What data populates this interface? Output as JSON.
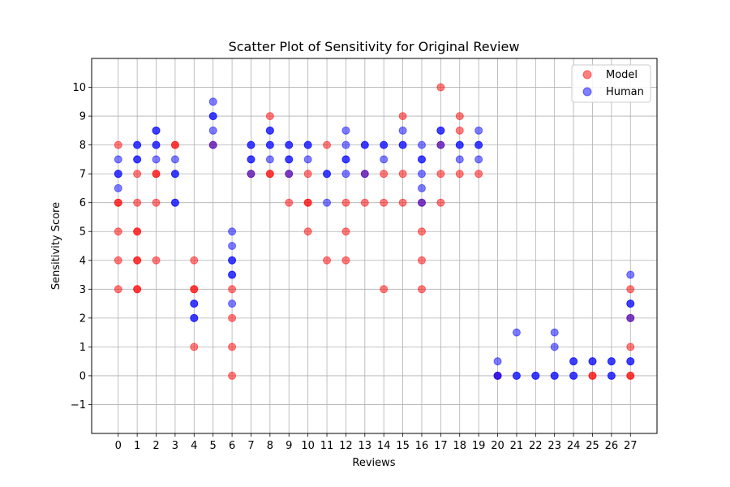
{
  "chart_data": {
    "type": "scatter",
    "title": "Scatter Plot of Sensitivity for Original Review",
    "xlabel": "Reviews",
    "ylabel": "Sensitivity Score",
    "xlim": [
      -1.4,
      28.4
    ],
    "ylim": [
      -2,
      11
    ],
    "xticks": [
      0,
      1,
      2,
      3,
      4,
      5,
      6,
      7,
      8,
      9,
      10,
      11,
      12,
      13,
      14,
      15,
      16,
      17,
      18,
      19,
      20,
      21,
      22,
      23,
      24,
      25,
      26,
      27
    ],
    "yticks": [
      -1,
      0,
      1,
      2,
      3,
      4,
      5,
      6,
      7,
      8,
      9,
      10
    ],
    "grid": true,
    "legend": "top-right",
    "series": [
      {
        "name": "Model",
        "color": "#ff0000",
        "points": [
          [
            0,
            8
          ],
          [
            0,
            6
          ],
          [
            0,
            6
          ],
          [
            0,
            5
          ],
          [
            0,
            4
          ],
          [
            0,
            3
          ],
          [
            1,
            7
          ],
          [
            1,
            6
          ],
          [
            1,
            5
          ],
          [
            1,
            5
          ],
          [
            1,
            4
          ],
          [
            1,
            4
          ],
          [
            1,
            3
          ],
          [
            1,
            3
          ],
          [
            2,
            7
          ],
          [
            2,
            7
          ],
          [
            2,
            6
          ],
          [
            2,
            4
          ],
          [
            3,
            8
          ],
          [
            3,
            8
          ],
          [
            4,
            4
          ],
          [
            4,
            3
          ],
          [
            4,
            3
          ],
          [
            4,
            1
          ],
          [
            5,
            8
          ],
          [
            6,
            3
          ],
          [
            6,
            2
          ],
          [
            6,
            1
          ],
          [
            6,
            0
          ],
          [
            7,
            7
          ],
          [
            8,
            9
          ],
          [
            8,
            7
          ],
          [
            8,
            7
          ],
          [
            9,
            7
          ],
          [
            9,
            6
          ],
          [
            10,
            7
          ],
          [
            10,
            6
          ],
          [
            10,
            6
          ],
          [
            10,
            5
          ],
          [
            11,
            8
          ],
          [
            11,
            4
          ],
          [
            12,
            6
          ],
          [
            12,
            5
          ],
          [
            12,
            4
          ],
          [
            13,
            7
          ],
          [
            13,
            6
          ],
          [
            14,
            7
          ],
          [
            14,
            6
          ],
          [
            14,
            3
          ],
          [
            15,
            9
          ],
          [
            15,
            7
          ],
          [
            15,
            6
          ],
          [
            16,
            6
          ],
          [
            16,
            5
          ],
          [
            16,
            4
          ],
          [
            16,
            3
          ],
          [
            17,
            10
          ],
          [
            17,
            8
          ],
          [
            17,
            7
          ],
          [
            17,
            6
          ],
          [
            18,
            9
          ],
          [
            18,
            8.5
          ],
          [
            18,
            7
          ],
          [
            19,
            7
          ],
          [
            20,
            0
          ],
          [
            25,
            0
          ],
          [
            25,
            0
          ],
          [
            27,
            3
          ],
          [
            27,
            2
          ],
          [
            27,
            1
          ],
          [
            27,
            0
          ],
          [
            27,
            0
          ]
        ]
      },
      {
        "name": "Human",
        "color": "#0000ff",
        "points": [
          [
            0,
            7.5
          ],
          [
            0,
            7
          ],
          [
            0,
            7
          ],
          [
            0,
            6.5
          ],
          [
            1,
            8
          ],
          [
            1,
            8
          ],
          [
            1,
            7.5
          ],
          [
            1,
            7.5
          ],
          [
            2,
            8.5
          ],
          [
            2,
            8.5
          ],
          [
            2,
            8
          ],
          [
            2,
            8
          ],
          [
            2,
            7.5
          ],
          [
            3,
            7.5
          ],
          [
            3,
            7
          ],
          [
            3,
            7
          ],
          [
            3,
            6
          ],
          [
            3,
            6
          ],
          [
            4,
            2.5
          ],
          [
            4,
            2.5
          ],
          [
            4,
            2
          ],
          [
            4,
            2
          ],
          [
            5,
            9.5
          ],
          [
            5,
            9
          ],
          [
            5,
            9
          ],
          [
            5,
            8.5
          ],
          [
            5,
            8
          ],
          [
            6,
            5
          ],
          [
            6,
            4.5
          ],
          [
            6,
            4
          ],
          [
            6,
            4
          ],
          [
            6,
            3.5
          ],
          [
            6,
            3.5
          ],
          [
            6,
            2.5
          ],
          [
            7,
            8
          ],
          [
            7,
            8
          ],
          [
            7,
            7.5
          ],
          [
            7,
            7.5
          ],
          [
            7,
            7
          ],
          [
            8,
            8.5
          ],
          [
            8,
            8.5
          ],
          [
            8,
            8
          ],
          [
            8,
            8
          ],
          [
            8,
            7.5
          ],
          [
            9,
            8
          ],
          [
            9,
            8
          ],
          [
            9,
            7.5
          ],
          [
            9,
            7.5
          ],
          [
            9,
            7
          ],
          [
            10,
            8
          ],
          [
            10,
            8
          ],
          [
            10,
            7.5
          ],
          [
            11,
            7
          ],
          [
            11,
            7
          ],
          [
            11,
            6
          ],
          [
            12,
            8.5
          ],
          [
            12,
            8
          ],
          [
            12,
            7.5
          ],
          [
            12,
            7.5
          ],
          [
            12,
            7
          ],
          [
            13,
            8
          ],
          [
            13,
            8
          ],
          [
            13,
            7
          ],
          [
            14,
            8
          ],
          [
            14,
            8
          ],
          [
            14,
            7.5
          ],
          [
            15,
            8.5
          ],
          [
            15,
            8
          ],
          [
            15,
            8
          ],
          [
            16,
            8
          ],
          [
            16,
            7.5
          ],
          [
            16,
            7.5
          ],
          [
            16,
            7
          ],
          [
            16,
            6.5
          ],
          [
            16,
            6
          ],
          [
            17,
            8.5
          ],
          [
            17,
            8.5
          ],
          [
            17,
            8
          ],
          [
            18,
            8
          ],
          [
            18,
            8
          ],
          [
            18,
            7.5
          ],
          [
            19,
            8.5
          ],
          [
            19,
            8
          ],
          [
            19,
            8
          ],
          [
            19,
            7.5
          ],
          [
            20,
            0.5
          ],
          [
            20,
            0
          ],
          [
            20,
            0
          ],
          [
            21,
            1.5
          ],
          [
            21,
            0
          ],
          [
            21,
            0
          ],
          [
            22,
            0
          ],
          [
            22,
            0
          ],
          [
            23,
            1.5
          ],
          [
            23,
            1
          ],
          [
            23,
            0
          ],
          [
            23,
            0
          ],
          [
            24,
            0.5
          ],
          [
            24,
            0.5
          ],
          [
            24,
            0
          ],
          [
            24,
            0
          ],
          [
            25,
            0.5
          ],
          [
            25,
            0.5
          ],
          [
            26,
            0.5
          ],
          [
            26,
            0.5
          ],
          [
            26,
            0
          ],
          [
            26,
            0
          ],
          [
            27,
            3.5
          ],
          [
            27,
            2.5
          ],
          [
            27,
            2.5
          ],
          [
            27,
            2
          ],
          [
            27,
            0.5
          ],
          [
            27,
            0.5
          ]
        ]
      }
    ]
  }
}
